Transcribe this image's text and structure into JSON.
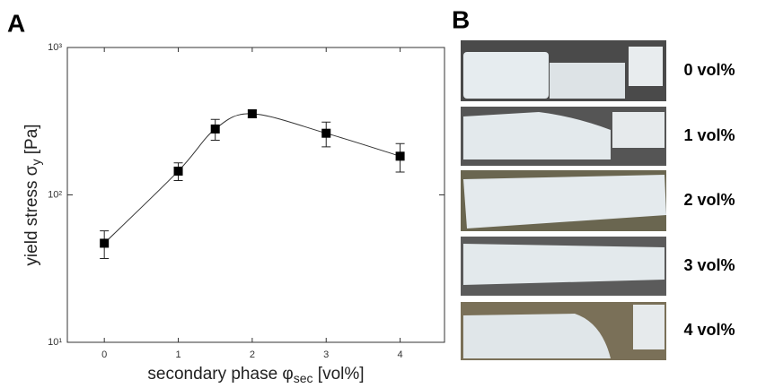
{
  "chart_data": {
    "type": "scatter",
    "panel_a": "A",
    "panel_b": "B",
    "x": [
      0,
      1,
      1.5,
      2,
      3,
      4
    ],
    "values": [
      47,
      145,
      280,
      355,
      262,
      183
    ],
    "errors": [
      10,
      20,
      45,
      20,
      50,
      40
    ],
    "color": "#000000",
    "fit_line": true,
    "log_y": true,
    "xlim": [
      -0.5,
      4.6
    ],
    "ylim": [
      10,
      1000
    ],
    "xticks": [
      0,
      1,
      2,
      3,
      4
    ],
    "yticks": [
      {
        "value": 10,
        "label": "10¹"
      },
      {
        "value": 100,
        "label": "10²"
      },
      {
        "value": 1000,
        "label": "10³"
      }
    ],
    "y_label": {
      "main": "yield stress σ",
      "sub": "y",
      "unit": " [Pa]"
    },
    "x_label": {
      "main": "secondary phase φ",
      "sub": "sec",
      "unit": "  [vol%]"
    },
    "photo_labels": [
      "0 vol%",
      "1 vol%",
      "2 vol%",
      "3 vol%",
      "4 vol%"
    ]
  }
}
